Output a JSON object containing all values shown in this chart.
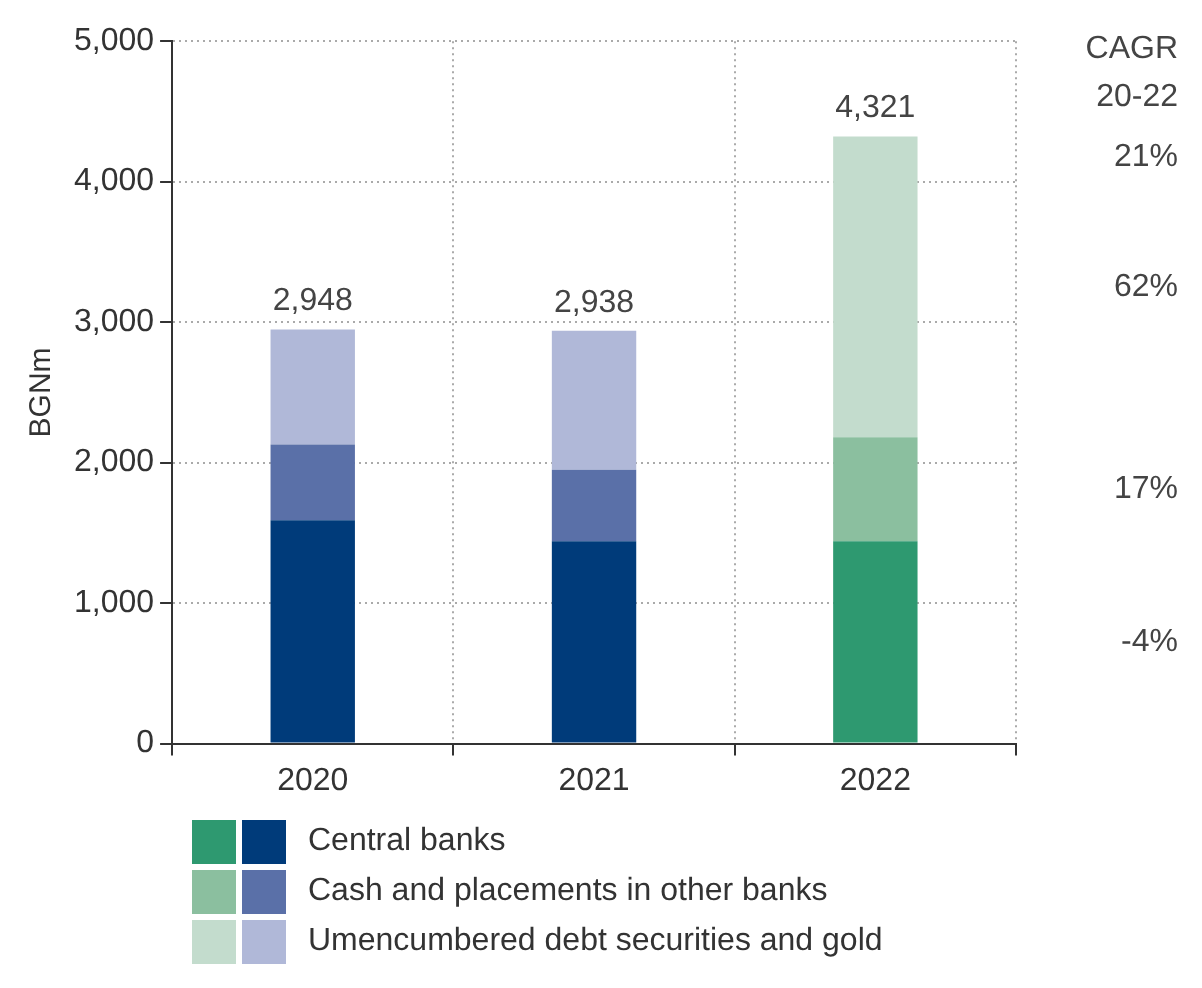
{
  "chart_data": {
    "type": "bar",
    "stacked": true,
    "categories": [
      "2020",
      "2021",
      "2022"
    ],
    "ylabel": "BGNm",
    "ylim": [
      0,
      5000
    ],
    "yticks": [
      {
        "value": 0,
        "label": "0"
      },
      {
        "value": 1000,
        "label": "1,000"
      },
      {
        "value": 2000,
        "label": "2,000"
      },
      {
        "value": 3000,
        "label": "3,000"
      },
      {
        "value": 4000,
        "label": "4,000"
      },
      {
        "value": 5000,
        "label": "5,000"
      }
    ],
    "grid": true,
    "legend": "bottom",
    "totals": [
      "2,948",
      "2,938",
      "4,321"
    ],
    "series": [
      {
        "name": "Central banks",
        "colors": [
          "#003b7a",
          "#003b7a",
          "#2e9970"
        ],
        "values": [
          1590,
          1440,
          1440
        ]
      },
      {
        "name": "Cash and placements in other banks",
        "colors": [
          "#5a70a8",
          "#5a70a8",
          "#8bbf9f"
        ],
        "values": [
          540,
          510,
          740
        ]
      },
      {
        "name": "Umencumbered debt securities and gold",
        "colors": [
          "#b0b8d8",
          "#b0b8d8",
          "#c3dccd"
        ],
        "values": [
          818,
          988,
          2141
        ]
      }
    ],
    "annotations": [
      "CAGR",
      "20-22",
      "21%",
      "62%",
      "17%",
      "-4%"
    ]
  }
}
